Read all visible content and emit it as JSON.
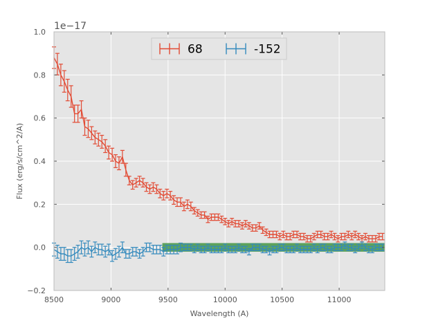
{
  "chart_data": {
    "type": "line",
    "title": "",
    "xlabel": "Wavelength (A)",
    "ylabel": "Flux (erg/s/cm^2/A)",
    "y_offset_label": "1e−17",
    "xlim": [
      8500,
      11400
    ],
    "ylim": [
      -0.2,
      1.0
    ],
    "xticks": [
      "8500",
      "9000",
      "9500",
      "10000",
      "10500",
      "11000"
    ],
    "yticks": [
      "−0.2",
      "0.0",
      "0.2",
      "0.4",
      "0.6",
      "0.8",
      "1.0"
    ],
    "xtick_values": [
      8500,
      9000,
      9500,
      10000,
      10500,
      11000
    ],
    "ytick_values": [
      -0.2,
      0.0,
      0.2,
      0.4,
      0.6,
      0.8,
      1.0
    ],
    "grid": true,
    "legend_position": "top-center",
    "band": {
      "x_start": 9450,
      "x_end": 11400,
      "y_low": -0.02,
      "y_high": 0.02,
      "color": "#2e8b2e"
    },
    "x_start": 8500,
    "x_step": 30,
    "series": [
      {
        "name": "68",
        "color": "#e24a33",
        "values": [
          0.88,
          0.85,
          0.8,
          0.77,
          0.73,
          0.7,
          0.62,
          0.62,
          0.64,
          0.56,
          0.55,
          0.53,
          0.51,
          0.5,
          0.49,
          0.47,
          0.44,
          0.43,
          0.4,
          0.39,
          0.42,
          0.36,
          0.31,
          0.29,
          0.3,
          0.31,
          0.3,
          0.28,
          0.27,
          0.28,
          0.27,
          0.25,
          0.24,
          0.25,
          0.24,
          0.22,
          0.21,
          0.21,
          0.19,
          0.2,
          0.19,
          0.17,
          0.16,
          0.15,
          0.15,
          0.13,
          0.14,
          0.14,
          0.14,
          0.13,
          0.12,
          0.11,
          0.12,
          0.11,
          0.11,
          0.1,
          0.11,
          0.1,
          0.09,
          0.09,
          0.1,
          0.08,
          0.07,
          0.06,
          0.06,
          0.06,
          0.05,
          0.06,
          0.05,
          0.05,
          0.06,
          0.06,
          0.05,
          0.05,
          0.04,
          0.04,
          0.05,
          0.06,
          0.06,
          0.05,
          0.05,
          0.06,
          0.05,
          0.04,
          0.05,
          0.05,
          0.06,
          0.05,
          0.06,
          0.05,
          0.04,
          0.05,
          0.04,
          0.04,
          0.04,
          0.05,
          0.05
        ],
        "errors": [
          0.05,
          0.05,
          0.05,
          0.05,
          0.05,
          0.05,
          0.04,
          0.04,
          0.04,
          0.04,
          0.04,
          0.03,
          0.03,
          0.03,
          0.03,
          0.03,
          0.03,
          0.03,
          0.03,
          0.03,
          0.03,
          0.03,
          0.02,
          0.02,
          0.02,
          0.02,
          0.02,
          0.02,
          0.02,
          0.02,
          0.02,
          0.02,
          0.02,
          0.02,
          0.02,
          0.02,
          0.02,
          0.02,
          0.02,
          0.02,
          0.02,
          0.015,
          0.015,
          0.015,
          0.015,
          0.015,
          0.015,
          0.015,
          0.015,
          0.015,
          0.015,
          0.015,
          0.015,
          0.015,
          0.015,
          0.015,
          0.015,
          0.015,
          0.015,
          0.015,
          0.015,
          0.015,
          0.015,
          0.015,
          0.015,
          0.015,
          0.015,
          0.015,
          0.015,
          0.015,
          0.015,
          0.015,
          0.015,
          0.015,
          0.015,
          0.015,
          0.015,
          0.015,
          0.015,
          0.015,
          0.015,
          0.015,
          0.015,
          0.015,
          0.015,
          0.015,
          0.015,
          0.015,
          0.015,
          0.015,
          0.015,
          0.015,
          0.015,
          0.015,
          0.015,
          0.015,
          0.015
        ]
      },
      {
        "name": "-152",
        "color": "#348abd",
        "values": [
          -0.01,
          -0.02,
          -0.03,
          -0.03,
          -0.04,
          -0.04,
          -0.03,
          -0.02,
          0.0,
          -0.01,
          0.0,
          -0.02,
          0.0,
          -0.01,
          -0.01,
          -0.02,
          -0.01,
          -0.04,
          -0.03,
          -0.02,
          0.0,
          -0.03,
          -0.03,
          -0.02,
          -0.02,
          -0.03,
          -0.02,
          0.0,
          0.0,
          -0.01,
          -0.01,
          -0.01,
          -0.02,
          -0.01,
          -0.01,
          -0.01,
          -0.01,
          0.0,
          0.0,
          0.0,
          0.0,
          -0.01,
          0.0,
          -0.01,
          -0.01,
          0.0,
          -0.01,
          -0.01,
          -0.01,
          -0.01,
          0.0,
          -0.01,
          -0.01,
          -0.01,
          0.0,
          -0.01,
          -0.01,
          -0.02,
          0.0,
          0.0,
          0.0,
          -0.01,
          -0.01,
          -0.02,
          -0.01,
          -0.01,
          0.0,
          0.0,
          -0.01,
          -0.01,
          -0.01,
          0.0,
          -0.01,
          -0.01,
          -0.01,
          -0.01,
          0.0,
          -0.01,
          0.0,
          0.0,
          -0.01,
          -0.01,
          0.0,
          0.0,
          0.0,
          0.01,
          0.0,
          0.0,
          -0.01,
          0.0,
          0.01,
          0.0,
          -0.01,
          -0.01,
          0.0,
          0.0,
          0.0
        ],
        "errors": [
          0.03,
          0.03,
          0.03,
          0.03,
          0.03,
          0.03,
          0.03,
          0.03,
          0.03,
          0.03,
          0.03,
          0.025,
          0.025,
          0.025,
          0.025,
          0.025,
          0.025,
          0.025,
          0.025,
          0.025,
          0.025,
          0.02,
          0.02,
          0.02,
          0.02,
          0.02,
          0.02,
          0.02,
          0.02,
          0.02,
          0.02,
          0.02,
          0.02,
          0.02,
          0.02,
          0.02,
          0.02,
          0.02,
          0.015,
          0.015,
          0.015,
          0.015,
          0.015,
          0.015,
          0.015,
          0.015,
          0.015,
          0.015,
          0.015,
          0.015,
          0.015,
          0.015,
          0.015,
          0.015,
          0.015,
          0.015,
          0.015,
          0.015,
          0.015,
          0.015,
          0.015,
          0.015,
          0.015,
          0.015,
          0.015,
          0.015,
          0.015,
          0.015,
          0.015,
          0.015,
          0.015,
          0.015,
          0.015,
          0.015,
          0.015,
          0.015,
          0.015,
          0.015,
          0.015,
          0.015,
          0.015,
          0.015,
          0.015,
          0.015,
          0.015,
          0.015,
          0.015,
          0.015,
          0.015,
          0.015,
          0.015,
          0.015,
          0.015,
          0.015,
          0.015,
          0.015,
          0.015
        ]
      }
    ]
  }
}
